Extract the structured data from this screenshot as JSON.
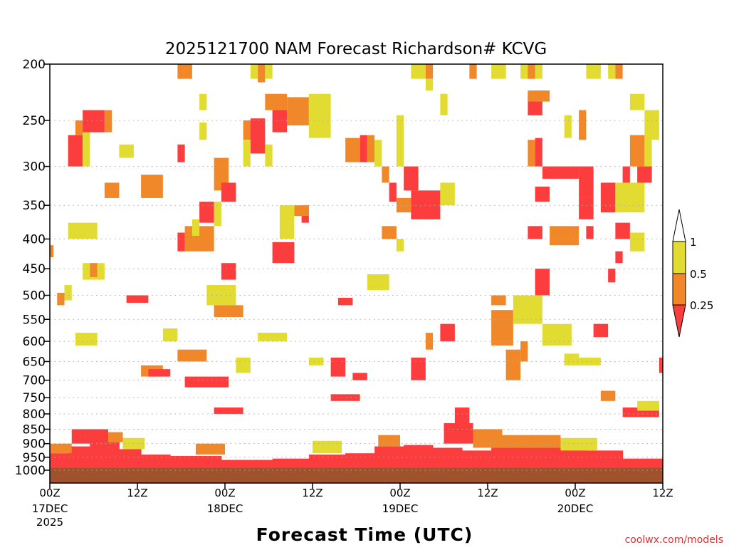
{
  "chart_data": {
    "type": "heatmap",
    "title": "2025121700 NAM Forecast Richardson# KCVG",
    "xlabel": "Forecast Time (UTC)",
    "ylabel": "",
    "credit": "coolwx.com/models",
    "x_unit": "forecast hour",
    "xlim": [
      0,
      84
    ],
    "ylim_hpa": [
      200,
      1050
    ],
    "y_scale": "log",
    "grid": "dotted horizontal at pressure ticks",
    "y_ticks": [
      "200",
      "250",
      "300",
      "350",
      "400",
      "450",
      "500",
      "550",
      "600",
      "650",
      "700",
      "750",
      "800",
      "850",
      "900",
      "950",
      "1000"
    ],
    "x_ticks": [
      {
        "hour": 0,
        "label": "00Z",
        "date": "17DEC",
        "year": "2025"
      },
      {
        "hour": 12,
        "label": "12Z"
      },
      {
        "hour": 24,
        "label": "00Z",
        "date": "18DEC"
      },
      {
        "hour": 36,
        "label": "12Z"
      },
      {
        "hour": 48,
        "label": "00Z",
        "date": "19DEC"
      },
      {
        "hour": 60,
        "label": "12Z"
      },
      {
        "hour": 72,
        "label": "00Z",
        "date": "20DEC"
      },
      {
        "hour": 84,
        "label": "12Z"
      }
    ],
    "legend": {
      "placement": "right",
      "labels": [
        "1",
        "0.5",
        "0.25"
      ],
      "categories": [
        {
          "name": "< 0.25",
          "color": "#fc3d3d"
        },
        {
          "name": "0.25 - 0.5",
          "color": "#f0882a"
        },
        {
          "name": "0.5 - 1",
          "color": "#e2dc32"
        },
        {
          "name": "> 1",
          "color": "#ffffff"
        }
      ]
    },
    "ground_color": "#a0522d",
    "ground_pressure_hpa": 990,
    "boundary_layer_top_hpa": [
      935,
      935,
      935,
      910,
      910,
      910,
      895,
      895,
      895,
      895,
      920,
      920,
      920,
      940,
      940,
      940,
      940,
      945,
      945,
      945,
      945,
      945,
      945,
      945,
      960,
      960,
      960,
      960,
      960,
      960,
      960,
      955,
      955,
      955,
      955,
      955,
      940,
      940,
      940,
      940,
      940,
      935,
      935,
      935,
      935,
      910,
      910,
      910,
      910,
      905,
      905,
      905,
      905,
      915,
      915,
      915,
      915,
      925,
      925,
      925,
      925,
      915,
      915,
      915,
      915,
      915,
      915,
      915,
      915,
      915,
      915,
      915,
      915,
      915,
      925,
      925,
      925,
      925,
      925,
      955,
      955,
      955,
      955,
      955,
      955
    ],
    "cells_note": "each cell: [start_hour, end_hour, top_hpa, bottom_hpa, category 0=<0.25,1=0.25-0.5,2=0.5-1]",
    "cells": [
      [
        17.5,
        19.5,
        200,
        212,
        1
      ],
      [
        27.5,
        28.5,
        200,
        212,
        2
      ],
      [
        28.5,
        29.5,
        200,
        215,
        1
      ],
      [
        29.5,
        30.5,
        200,
        212,
        2
      ],
      [
        49.5,
        51.5,
        200,
        212,
        2
      ],
      [
        51.5,
        52.5,
        200,
        212,
        1
      ],
      [
        51.5,
        52.5,
        212,
        222,
        2
      ],
      [
        57.5,
        58.5,
        200,
        212,
        1
      ],
      [
        60.5,
        62.5,
        200,
        212,
        2
      ],
      [
        64.5,
        67.5,
        200,
        212,
        2
      ],
      [
        65.5,
        66.5,
        200,
        212,
        1
      ],
      [
        73.5,
        75.5,
        200,
        212,
        2
      ],
      [
        76.5,
        77.5,
        200,
        212,
        2
      ],
      [
        77.5,
        78.5,
        200,
        212,
        1
      ],
      [
        20.5,
        21.5,
        225,
        240,
        2
      ],
      [
        20.5,
        21.5,
        252,
        270,
        2
      ],
      [
        29.5,
        32.5,
        225,
        240,
        1
      ],
      [
        30.5,
        32.5,
        240,
        262,
        0
      ],
      [
        32.5,
        35.5,
        228,
        255,
        1
      ],
      [
        35.5,
        38.5,
        225,
        268,
        2
      ],
      [
        26.5,
        28.5,
        250,
        270,
        1
      ],
      [
        27.5,
        29.5,
        248,
        285,
        0
      ],
      [
        26.5,
        27.5,
        270,
        300,
        2
      ],
      [
        29.5,
        30.5,
        275,
        300,
        2
      ],
      [
        2.5,
        4.5,
        265,
        300,
        0
      ],
      [
        4.5,
        5.5,
        250,
        300,
        2
      ],
      [
        3.5,
        4.5,
        250,
        265,
        1
      ],
      [
        4.5,
        7.5,
        240,
        262,
        0
      ],
      [
        7.5,
        8.5,
        240,
        262,
        1
      ],
      [
        9.5,
        11.5,
        275,
        290,
        2
      ],
      [
        17.5,
        18.5,
        275,
        295,
        0
      ],
      [
        65.5,
        67.5,
        225,
        245,
        0
      ],
      [
        65.5,
        68.5,
        222,
        232,
        1
      ],
      [
        65.5,
        66.5,
        270,
        300,
        1
      ],
      [
        66.5,
        67.5,
        268,
        300,
        0
      ],
      [
        70.5,
        71.5,
        245,
        268,
        2
      ],
      [
        72.5,
        73.5,
        240,
        270,
        1
      ],
      [
        79.5,
        81.5,
        225,
        240,
        2
      ],
      [
        81.5,
        83.5,
        240,
        270,
        2
      ],
      [
        79.5,
        81.5,
        265,
        300,
        1
      ],
      [
        81.5,
        82.5,
        268,
        300,
        2
      ],
      [
        40.5,
        42.5,
        268,
        295,
        1
      ],
      [
        42.5,
        43.5,
        265,
        295,
        0
      ],
      [
        43.5,
        44.5,
        265,
        295,
        1
      ],
      [
        44.5,
        45.5,
        270,
        300,
        2
      ],
      [
        47.5,
        48.5,
        245,
        300,
        2
      ],
      [
        53.5,
        54.5,
        225,
        245,
        2
      ],
      [
        67.5,
        72.5,
        300,
        315,
        0
      ],
      [
        66.5,
        68.5,
        325,
        345,
        0
      ],
      [
        72.5,
        74.5,
        300,
        340,
        0
      ],
      [
        75.5,
        77.5,
        320,
        360,
        0
      ],
      [
        72.5,
        74.5,
        340,
        370,
        0
      ],
      [
        78.5,
        79.5,
        300,
        320,
        0
      ],
      [
        77.5,
        81.5,
        320,
        360,
        2
      ],
      [
        80.5,
        82.5,
        300,
        320,
        0
      ],
      [
        46.5,
        47.5,
        320,
        345,
        0
      ],
      [
        49.5,
        53.5,
        330,
        370,
        0
      ],
      [
        47.5,
        49.5,
        340,
        360,
        1
      ],
      [
        53.5,
        55.5,
        320,
        350,
        2
      ],
      [
        45.5,
        46.5,
        300,
        320,
        1
      ],
      [
        48.5,
        50.5,
        300,
        330,
        0
      ],
      [
        22.5,
        24.5,
        290,
        330,
        1
      ],
      [
        23.5,
        25.5,
        320,
        345,
        0
      ],
      [
        20.5,
        22.5,
        345,
        375,
        0
      ],
      [
        22.5,
        23.5,
        345,
        380,
        2
      ],
      [
        17.5,
        18.5,
        390,
        420,
        0
      ],
      [
        18.5,
        22.5,
        380,
        420,
        1
      ],
      [
        19.5,
        20.5,
        370,
        395,
        2
      ],
      [
        12.5,
        15.5,
        310,
        340,
        1
      ],
      [
        7.5,
        9.5,
        320,
        340,
        1
      ],
      [
        2.5,
        6.5,
        375,
        400,
        2
      ],
      [
        30.5,
        33.5,
        405,
        440,
        0
      ],
      [
        34.5,
        35.5,
        350,
        375,
        0
      ],
      [
        33.5,
        35.5,
        350,
        365,
        1
      ],
      [
        31.5,
        33.5,
        350,
        400,
        2
      ],
      [
        45.5,
        47.5,
        380,
        400,
        1
      ],
      [
        65.5,
        67.5,
        380,
        400,
        0
      ],
      [
        68.5,
        72.5,
        380,
        410,
        1
      ],
      [
        73.5,
        74.5,
        380,
        400,
        0
      ],
      [
        77.5,
        79.5,
        375,
        400,
        0
      ],
      [
        77.5,
        78.5,
        420,
        440,
        0
      ],
      [
        76.5,
        77.5,
        450,
        475,
        0
      ],
      [
        79.5,
        81.5,
        390,
        420,
        2
      ],
      [
        23.5,
        25.5,
        440,
        470,
        0
      ],
      [
        21.5,
        25.5,
        480,
        520,
        2
      ],
      [
        22.5,
        26.5,
        520,
        545,
        1
      ],
      [
        10.5,
        13.5,
        500,
        515,
        0
      ],
      [
        39.5,
        41.5,
        505,
        520,
        0
      ],
      [
        4.5,
        7.5,
        440,
        470,
        2
      ],
      [
        5.5,
        6.5,
        440,
        465,
        1
      ],
      [
        0,
        0.5,
        410,
        430,
        1
      ],
      [
        1,
        2,
        495,
        520,
        1
      ],
      [
        2,
        3,
        480,
        510,
        2
      ],
      [
        51.5,
        52.5,
        580,
        620,
        1
      ],
      [
        53.5,
        55.5,
        560,
        600,
        0
      ],
      [
        60.5,
        63.5,
        530,
        610,
        1
      ],
      [
        62.5,
        64.5,
        620,
        700,
        1
      ],
      [
        49.5,
        51.5,
        640,
        700,
        0
      ],
      [
        38.5,
        40.5,
        640,
        690,
        0
      ],
      [
        18.5,
        24.5,
        690,
        720,
        0
      ],
      [
        38.5,
        42.5,
        740,
        760,
        0
      ],
      [
        55.5,
        57.5,
        780,
        830,
        0
      ],
      [
        22.5,
        26.5,
        780,
        800,
        0
      ],
      [
        78.5,
        83.5,
        780,
        810,
        0
      ],
      [
        3.5,
        6.5,
        580,
        610,
        2
      ],
      [
        15.5,
        17.5,
        570,
        600,
        2
      ],
      [
        17.5,
        21.5,
        620,
        650,
        1
      ],
      [
        12.5,
        15.5,
        660,
        690,
        1
      ],
      [
        13.5,
        16.5,
        670,
        690,
        0
      ],
      [
        66.5,
        68.5,
        450,
        500,
        0
      ],
      [
        63.5,
        67.5,
        500,
        560,
        2
      ],
      [
        67.5,
        71.5,
        560,
        610,
        2
      ],
      [
        70.5,
        72.5,
        630,
        660,
        2
      ],
      [
        72.5,
        75.5,
        640,
        660,
        2
      ],
      [
        74.5,
        76.5,
        560,
        590,
        0
      ],
      [
        60.5,
        62.5,
        500,
        520,
        1
      ],
      [
        64.5,
        65.5,
        600,
        650,
        1
      ],
      [
        47.5,
        48.5,
        400,
        420,
        2
      ],
      [
        43.5,
        46.5,
        460,
        490,
        2
      ],
      [
        28.5,
        32.5,
        580,
        600,
        2
      ],
      [
        25.5,
        27.5,
        640,
        680,
        2
      ],
      [
        35.5,
        37.5,
        640,
        660,
        2
      ],
      [
        41.5,
        43.5,
        680,
        700,
        0
      ],
      [
        75.5,
        77.5,
        730,
        760,
        1
      ],
      [
        80.5,
        83.5,
        760,
        790,
        2
      ],
      [
        83.5,
        84,
        640,
        680,
        0
      ],
      [
        0,
        3,
        900,
        935,
        1
      ],
      [
        3,
        8,
        850,
        900,
        0
      ],
      [
        8,
        10,
        860,
        895,
        1
      ],
      [
        10,
        13,
        880,
        920,
        2
      ],
      [
        20,
        24,
        900,
        940,
        1
      ],
      [
        36,
        40,
        890,
        935,
        2
      ],
      [
        45,
        48,
        870,
        910,
        1
      ],
      [
        54,
        58,
        830,
        900,
        0
      ],
      [
        58,
        62,
        850,
        915,
        1
      ],
      [
        62,
        70,
        870,
        915,
        1
      ],
      [
        70,
        75,
        880,
        925,
        2
      ]
    ]
  }
}
